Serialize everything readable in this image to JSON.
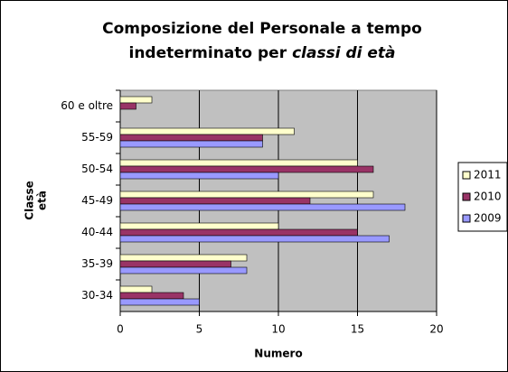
{
  "chart_data": {
    "type": "barh",
    "title": [
      "Composizione del Personale a tempo",
      "indeterminato per",
      "classi di età"
    ],
    "xlabel": "Numero",
    "ylabel": [
      "Classe",
      "età"
    ],
    "categories": [
      "30-34",
      "35-39",
      "40-44",
      "45-49",
      "50-54",
      "55-59",
      "60 e oltre"
    ],
    "series": [
      {
        "name": "2011",
        "color": "#ffffcc",
        "values": [
          2,
          8,
          10,
          16,
          15,
          11,
          2
        ]
      },
      {
        "name": "2010",
        "color": "#993366",
        "values": [
          4,
          7,
          15,
          12,
          16,
          9,
          1
        ]
      },
      {
        "name": "2009",
        "color": "#9999ff",
        "values": [
          5,
          8,
          17,
          18,
          10,
          9,
          0
        ]
      }
    ],
    "xlim": [
      0,
      20
    ],
    "xticks": [
      0,
      5,
      10,
      15,
      20
    ],
    "grid": true,
    "legend": "right",
    "plot_background": "#c0c0c0"
  }
}
